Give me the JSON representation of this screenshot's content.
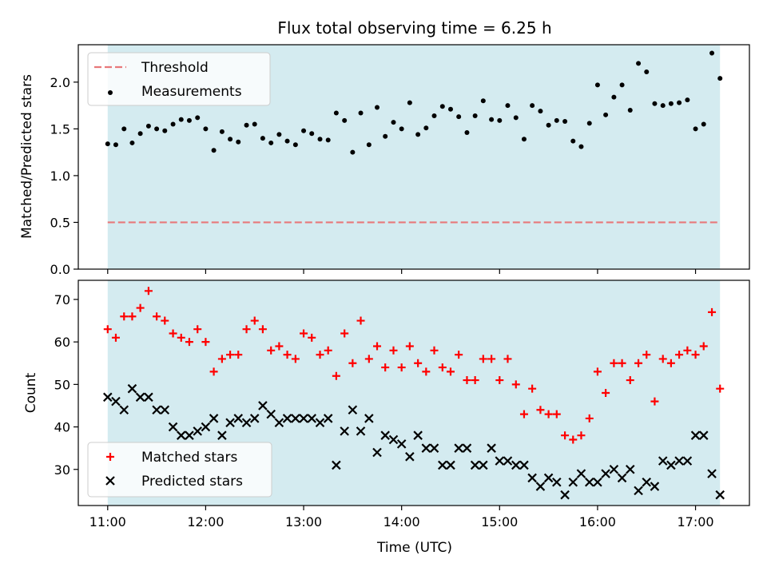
{
  "chart_data": [
    {
      "type": "scatter",
      "title": "Flux total observing time = 6.25 h",
      "xlabel": "",
      "ylabel": "Matched/Predicted stars",
      "ylim": [
        0,
        2.4
      ],
      "yticks": [
        0.0,
        0.5,
        1.0,
        1.5,
        2.0
      ],
      "ytick_labels": [
        "0.0",
        "0.5",
        "1.0",
        "1.5",
        "2.0"
      ],
      "xlim_hours": [
        10.7,
        17.55
      ],
      "shaded_span_hours": [
        11.0,
        17.25
      ],
      "shade_color": "#d4ebf0",
      "legend_position": "upper-left",
      "threshold": {
        "name": "Threshold",
        "value": 0.5,
        "x_range_hours": [
          11.0,
          17.25
        ],
        "color": "#e8787a"
      },
      "series": [
        {
          "name": "Measurements",
          "marker": "dot",
          "color": "#000000",
          "x_hours": [
            11.0,
            11.083,
            11.167,
            11.25,
            11.333,
            11.417,
            11.5,
            11.583,
            11.667,
            11.75,
            11.833,
            11.917,
            12.0,
            12.083,
            12.167,
            12.25,
            12.333,
            12.417,
            12.5,
            12.583,
            12.667,
            12.75,
            12.833,
            12.917,
            13.0,
            13.083,
            13.167,
            13.25,
            13.333,
            13.417,
            13.5,
            13.583,
            13.667,
            13.75,
            13.833,
            13.917,
            14.0,
            14.083,
            14.167,
            14.25,
            14.333,
            14.417,
            14.5,
            14.583,
            14.667,
            14.75,
            14.833,
            14.917,
            15.0,
            15.083,
            15.167,
            15.25,
            15.333,
            15.417,
            15.5,
            15.583,
            15.667,
            15.75,
            15.833,
            15.917,
            16.0,
            16.083,
            16.167,
            16.25,
            16.333,
            16.417,
            16.5,
            16.583,
            16.667,
            16.75,
            16.833,
            16.917,
            17.0,
            17.083,
            17.167,
            17.25
          ],
          "y": [
            1.34,
            1.33,
            1.5,
            1.35,
            1.45,
            1.53,
            1.5,
            1.48,
            1.55,
            1.6,
            1.59,
            1.62,
            1.5,
            1.27,
            1.47,
            1.39,
            1.36,
            1.54,
            1.55,
            1.4,
            1.35,
            1.44,
            1.37,
            1.33,
            1.48,
            1.45,
            1.39,
            1.38,
            1.67,
            1.59,
            1.25,
            1.67,
            1.33,
            1.73,
            1.42,
            1.57,
            1.5,
            1.78,
            1.44,
            1.51,
            1.64,
            1.74,
            1.71,
            1.63,
            1.46,
            1.64,
            1.8,
            1.6,
            1.59,
            1.75,
            1.62,
            1.39,
            1.75,
            1.69,
            1.54,
            1.59,
            1.58,
            1.37,
            1.31,
            1.56,
            1.97,
            1.65,
            1.84,
            1.97,
            1.7,
            2.2,
            2.11,
            1.77,
            1.75,
            1.77,
            1.78,
            1.81,
            1.5,
            1.55,
            2.31,
            2.04
          ]
        }
      ]
    },
    {
      "type": "scatter",
      "title": "",
      "xlabel": "Time (UTC)",
      "ylabel": "Count",
      "ylim": [
        21.5,
        74.5
      ],
      "yticks": [
        30,
        40,
        50,
        60,
        70
      ],
      "ytick_labels": [
        "30",
        "40",
        "50",
        "60",
        "70"
      ],
      "xlim_hours": [
        10.7,
        17.55
      ],
      "xticks_hours": [
        11,
        12,
        13,
        14,
        15,
        16,
        17
      ],
      "xtick_labels": [
        "11:00",
        "12:00",
        "13:00",
        "14:00",
        "15:00",
        "16:00",
        "17:00"
      ],
      "shaded_span_hours": [
        11.0,
        17.25
      ],
      "shade_color": "#d4ebf0",
      "legend_position": "lower-left",
      "series": [
        {
          "name": "Matched stars",
          "marker": "plus",
          "color": "#ff0000",
          "x_hours": [
            11.0,
            11.083,
            11.167,
            11.25,
            11.333,
            11.417,
            11.5,
            11.583,
            11.667,
            11.75,
            11.833,
            11.917,
            12.0,
            12.083,
            12.167,
            12.25,
            12.333,
            12.417,
            12.5,
            12.583,
            12.667,
            12.75,
            12.833,
            12.917,
            13.0,
            13.083,
            13.167,
            13.25,
            13.333,
            13.417,
            13.5,
            13.583,
            13.667,
            13.75,
            13.833,
            13.917,
            14.0,
            14.083,
            14.167,
            14.25,
            14.333,
            14.417,
            14.5,
            14.583,
            14.667,
            14.75,
            14.833,
            14.917,
            15.0,
            15.083,
            15.167,
            15.25,
            15.333,
            15.417,
            15.5,
            15.583,
            15.667,
            15.75,
            15.833,
            15.917,
            16.0,
            16.083,
            16.167,
            16.25,
            16.333,
            16.417,
            16.5,
            16.583,
            16.667,
            16.75,
            16.833,
            16.917,
            17.0,
            17.083,
            17.167,
            17.25
          ],
          "y": [
            63,
            61,
            66,
            66,
            68,
            72,
            66,
            65,
            62,
            61,
            60,
            63,
            60,
            53,
            56,
            57,
            57,
            63,
            65,
            63,
            58,
            59,
            57,
            56,
            62,
            61,
            57,
            58,
            52,
            62,
            55,
            65,
            56,
            59,
            54,
            58,
            54,
            59,
            55,
            53,
            58,
            54,
            53,
            57,
            51,
            51,
            56,
            56,
            51,
            56,
            50,
            43,
            49,
            44,
            43,
            43,
            38,
            37,
            38,
            42,
            53,
            48,
            55,
            55,
            51,
            55,
            57,
            46,
            56,
            55,
            57,
            58,
            57,
            59,
            67,
            49
          ]
        },
        {
          "name": "Predicted stars",
          "marker": "x",
          "color": "#000000",
          "x_hours": [
            11.0,
            11.083,
            11.167,
            11.25,
            11.333,
            11.417,
            11.5,
            11.583,
            11.667,
            11.75,
            11.833,
            11.917,
            12.0,
            12.083,
            12.167,
            12.25,
            12.333,
            12.417,
            12.5,
            12.583,
            12.667,
            12.75,
            12.833,
            12.917,
            13.0,
            13.083,
            13.167,
            13.25,
            13.333,
            13.417,
            13.5,
            13.583,
            13.667,
            13.75,
            13.833,
            13.917,
            14.0,
            14.083,
            14.167,
            14.25,
            14.333,
            14.417,
            14.5,
            14.583,
            14.667,
            14.75,
            14.833,
            14.917,
            15.0,
            15.083,
            15.167,
            15.25,
            15.333,
            15.417,
            15.5,
            15.583,
            15.667,
            15.75,
            15.833,
            15.917,
            16.0,
            16.083,
            16.167,
            16.25,
            16.333,
            16.417,
            16.5,
            16.583,
            16.667,
            16.75,
            16.833,
            16.917,
            17.0,
            17.083,
            17.167,
            17.25
          ],
          "y": [
            47,
            46,
            44,
            49,
            47,
            47,
            44,
            44,
            40,
            38,
            38,
            39,
            40,
            42,
            38,
            41,
            42,
            41,
            42,
            45,
            43,
            41,
            42,
            42,
            42,
            42,
            41,
            42,
            31,
            39,
            44,
            39,
            42,
            34,
            38,
            37,
            36,
            33,
            38,
            35,
            35,
            31,
            31,
            35,
            35,
            31,
            31,
            35,
            32,
            32,
            31,
            31,
            28,
            26,
            28,
            27,
            24,
            27,
            29,
            27,
            27,
            29,
            30,
            28,
            30,
            25,
            27,
            26,
            32,
            31,
            32,
            32,
            38,
            38,
            29,
            24
          ]
        }
      ]
    }
  ]
}
